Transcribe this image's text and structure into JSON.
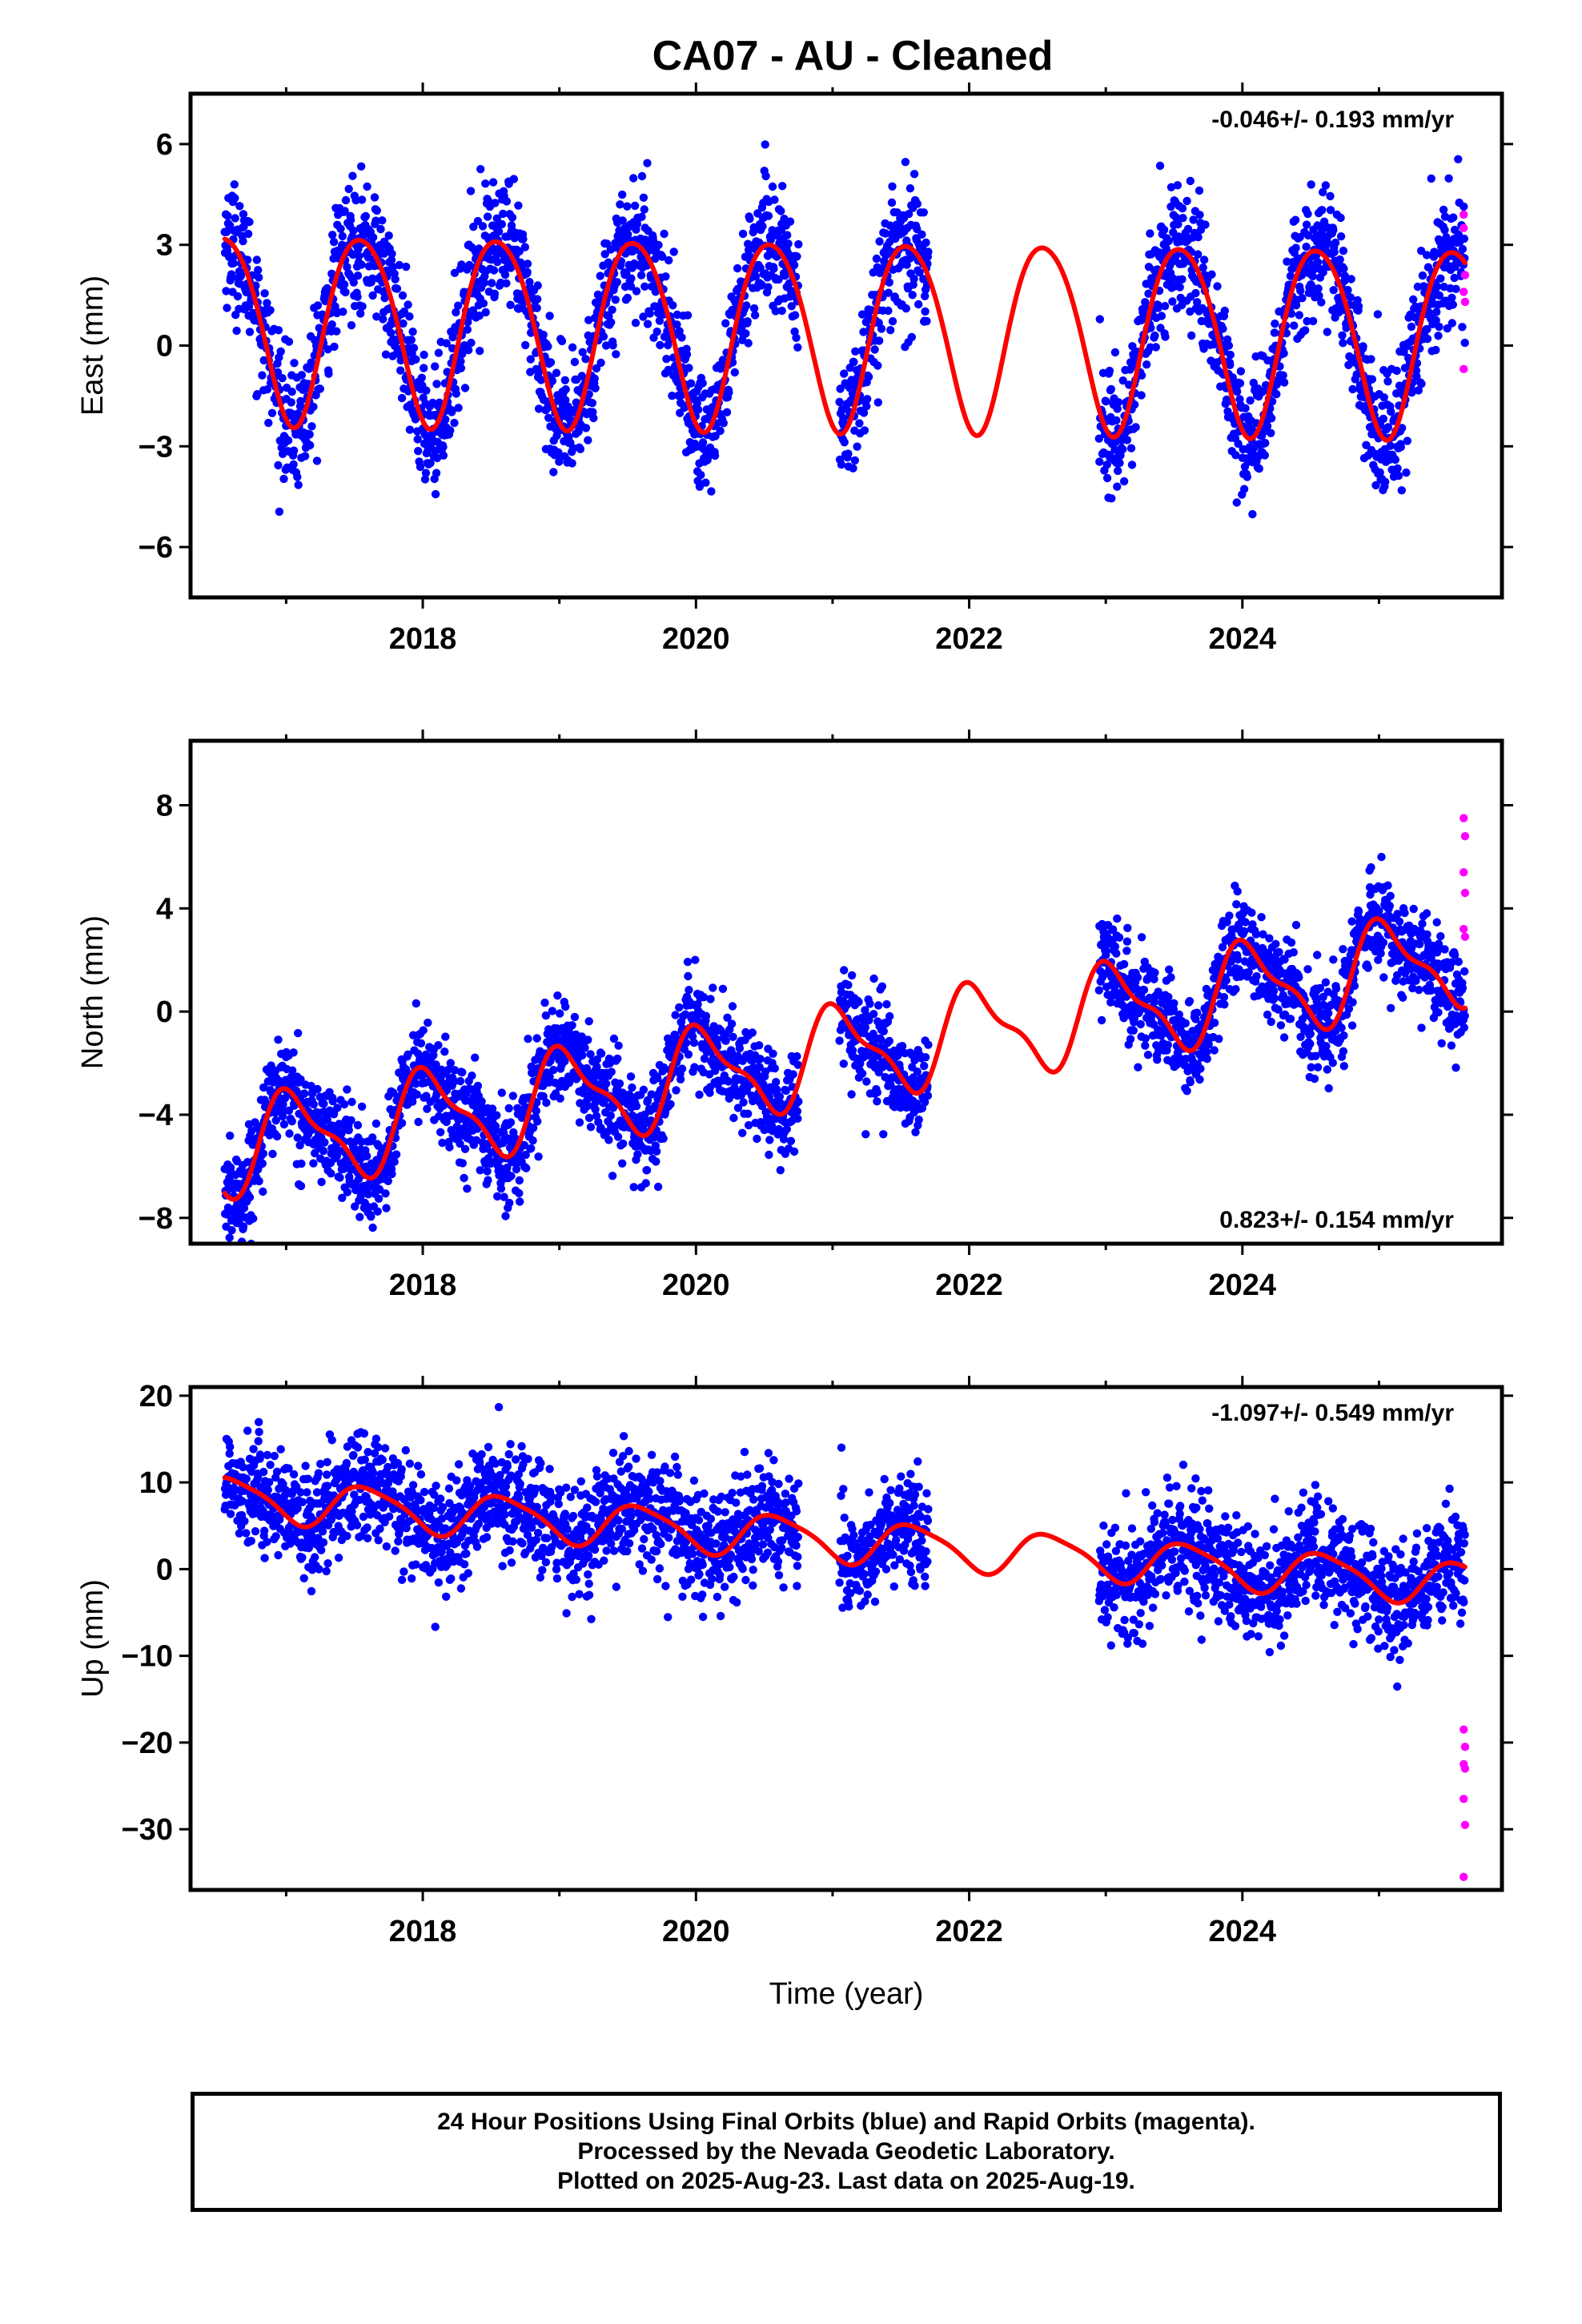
{
  "title": "CA07  - AU - Cleaned",
  "xlabel": "Time (year)",
  "footer": {
    "line1": "24 Hour Positions Using Final Orbits (blue) and Rapid Orbits (magenta).",
    "line2": "Processed by the Nevada Geodetic Laboratory.",
    "line3": "Plotted on 2025-Aug-23. Last data on 2025-Aug-19."
  },
  "colors": {
    "final": "#0000ff",
    "rapid": "#ff00ff",
    "model": "#ff0000",
    "frame": "#000000"
  },
  "chart_data": [
    {
      "type": "scatter",
      "component": "east",
      "ylabel": "East (mm)",
      "rate_label": "-0.046+/- 0.193 mm/yr",
      "xlim": [
        2016.3,
        2025.9
      ],
      "ylim": [
        -7.5,
        7.5
      ],
      "xticks": [
        2018,
        2020,
        2022,
        2024
      ],
      "yticks": [
        -6,
        -3,
        0,
        3,
        6
      ],
      "yticklabels": [
        "−6",
        "−3",
        "0",
        "3",
        "6"
      ],
      "series": [
        {
          "role": "final",
          "color": "#0000ff"
        },
        {
          "role": "rapid",
          "color": "#ff00ff"
        },
        {
          "role": "model",
          "color": "#ff0000"
        }
      ],
      "model": {
        "start": 2016.55,
        "end": 2025.63,
        "offset": 0.5,
        "rate": -0.046,
        "amp1": 2.8,
        "phase1": 0.05,
        "amp2": 0.3,
        "phase2": 0.2
      },
      "gaps": [
        [
          2020.75,
          2021.05
        ],
        [
          2021.7,
          2022.95
        ]
      ],
      "noise": 0.95,
      "rapid_points": {
        "x": [
          2025.62,
          2025.62,
          2025.63,
          2025.62,
          2025.63,
          2025.62
        ],
        "y": [
          3.9,
          3.5,
          2.1,
          1.6,
          1.3,
          -0.7
        ]
      }
    },
    {
      "type": "scatter",
      "component": "north",
      "ylabel": "North (mm)",
      "rate_label": "0.823+/- 0.154 mm/yr",
      "xlim": [
        2016.3,
        2025.9
      ],
      "ylim": [
        -9,
        10.5
      ],
      "xticks": [
        2018,
        2020,
        2022,
        2024
      ],
      "yticks": [
        -8,
        -4,
        0,
        4,
        8
      ],
      "yticklabels": [
        "−8",
        "−4",
        "0",
        "4",
        "8"
      ],
      "series": [
        {
          "role": "final",
          "color": "#0000ff"
        },
        {
          "role": "rapid",
          "color": "#ff00ff"
        },
        {
          "role": "model",
          "color": "#ff0000"
        }
      ],
      "model": {
        "start": 2016.55,
        "end": 2025.63,
        "offset": -2.5,
        "rate": 0.823,
        "amp1": 1.7,
        "phase1": 0.55,
        "amp2": 0.6,
        "phase2": 0.3
      },
      "gaps": [
        [
          2020.75,
          2021.05
        ],
        [
          2021.7,
          2022.95
        ]
      ],
      "noise": 0.95,
      "rapid_points": {
        "x": [
          2025.62,
          2025.63,
          2025.62,
          2025.63,
          2025.62,
          2025.63
        ],
        "y": [
          7.5,
          6.8,
          5.4,
          4.6,
          3.2,
          2.9
        ]
      }
    },
    {
      "type": "scatter",
      "component": "up",
      "ylabel": "Up (mm)",
      "rate_label": "-1.097+/- 0.549 mm/yr",
      "xlim": [
        2016.3,
        2025.9
      ],
      "ylim": [
        -37,
        21
      ],
      "xticks": [
        2018,
        2020,
        2022,
        2024
      ],
      "yticks": [
        -30,
        -20,
        -10,
        0,
        10,
        20
      ],
      "yticklabels": [
        "−30",
        "−20",
        "−10",
        "0",
        "10",
        "20"
      ],
      "series": [
        {
          "role": "final",
          "color": "#0000ff"
        },
        {
          "role": "rapid",
          "color": "#ff00ff"
        },
        {
          "role": "model",
          "color": "#ff0000"
        }
      ],
      "model": {
        "start": 2016.55,
        "end": 2025.63,
        "offset": 4.5,
        "rate": -1.097,
        "amp1": 2.4,
        "phase1": 0.1,
        "amp2": 0.5,
        "phase2": 0.3
      },
      "gaps": [
        [
          2020.75,
          2021.05
        ],
        [
          2021.7,
          2022.95
        ]
      ],
      "noise": 3.2,
      "rapid_points": {
        "x": [
          2025.62,
          2025.63,
          2025.62,
          2025.63,
          2025.62,
          2025.63,
          2025.62
        ],
        "y": [
          -18.5,
          -20.5,
          -22.5,
          -23.0,
          -26.5,
          -29.5,
          -35.5
        ]
      }
    }
  ]
}
